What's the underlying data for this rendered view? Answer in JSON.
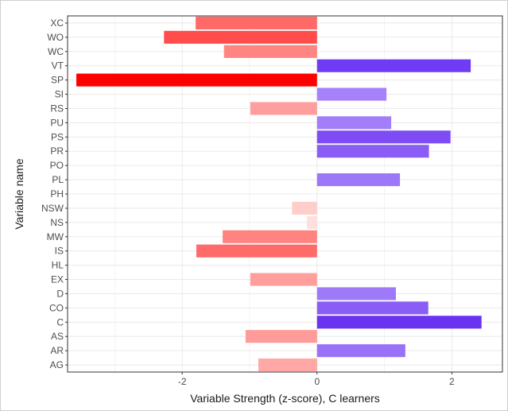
{
  "chart_data": {
    "type": "bar",
    "orientation": "horizontal",
    "title": "",
    "xlabel": "Variable Strength (z-score), C learners",
    "ylabel": "Variable name",
    "xlim": [
      -3.7,
      2.75
    ],
    "xticks": [
      -2,
      0,
      2
    ],
    "xtick_labels": [
      "-2",
      "0",
      "2"
    ],
    "grid": true,
    "legend": "none",
    "categories": [
      "XC",
      "WO",
      "WC",
      "VT",
      "SP",
      "SI",
      "RS",
      "PU",
      "PS",
      "PR",
      "PO",
      "PL",
      "PH",
      "NSW",
      "NS",
      "MW",
      "IS",
      "HL",
      "EX",
      "D",
      "CO",
      "C",
      "AS",
      "AR",
      "AG"
    ],
    "values": [
      -1.8,
      -2.27,
      -1.38,
      2.28,
      -3.57,
      1.03,
      -0.99,
      1.1,
      1.98,
      1.66,
      0.0,
      1.23,
      0.0,
      -0.37,
      -0.15,
      -1.4,
      -1.79,
      0.0,
      -0.99,
      1.17,
      1.65,
      2.44,
      -1.06,
      1.31,
      -0.87
    ],
    "colors": {
      "negative_max": "#ff0000",
      "negative_min": "#fff0ec",
      "positive_max": "#6a33f2",
      "positive_min": "#dcccff",
      "panel_background": "#ffffff",
      "grid_major": "#ebebeb",
      "panel_border": "#333333"
    }
  }
}
